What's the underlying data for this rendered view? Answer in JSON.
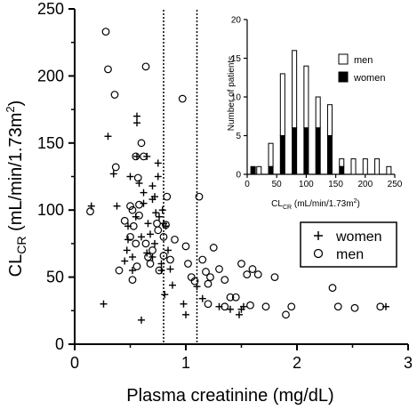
{
  "chart_data": [
    {
      "type": "scatter",
      "xlabel": "Plasma creatinine (mg/dL)",
      "ylabel": "CLCR (mL/min/1.73m2)",
      "ylabel_parts": {
        "main": "CL",
        "sub": "CR",
        "rest": " (mL/min/1.73m",
        "sup": "2",
        "close": ")"
      },
      "xlim": [
        0,
        3
      ],
      "ylim": [
        0,
        250
      ],
      "xticks": [
        "0",
        "1",
        "2",
        "3"
      ],
      "yticks": [
        "0",
        "50",
        "100",
        "150",
        "200",
        "250"
      ],
      "reference_lines_x": [
        0.8,
        1.1
      ],
      "legend": {
        "position": "right",
        "entries": [
          {
            "symbol": "+",
            "label": "women"
          },
          {
            "symbol": "o",
            "label": "men"
          }
        ]
      },
      "series": [
        {
          "name": "women",
          "marker": "+",
          "points": [
            [
              0.15,
              103
            ],
            [
              0.3,
              155
            ],
            [
              0.38,
              103
            ],
            [
              0.45,
              62
            ],
            [
              0.47,
              70
            ],
            [
              0.48,
              78
            ],
            [
              0.48,
              88
            ],
            [
              0.5,
              125
            ],
            [
              0.52,
              55
            ],
            [
              0.52,
              65
            ],
            [
              0.55,
              95
            ],
            [
              0.56,
              140
            ],
            [
              0.56,
              165
            ],
            [
              0.56,
              170
            ],
            [
              0.58,
              120
            ],
            [
              0.6,
              80
            ],
            [
              0.62,
              105
            ],
            [
              0.62,
              113
            ],
            [
              0.65,
              140
            ],
            [
              0.65,
              68
            ],
            [
              0.66,
              90
            ],
            [
              0.68,
              82
            ],
            [
              0.7,
              108
            ],
            [
              0.7,
              118
            ],
            [
              0.7,
              65
            ],
            [
              0.72,
              75
            ],
            [
              0.72,
              110
            ],
            [
              0.73,
              98
            ],
            [
              0.75,
              125
            ],
            [
              0.75,
              135
            ],
            [
              0.76,
              95
            ],
            [
              0.78,
              60
            ],
            [
              0.78,
              55
            ],
            [
              0.79,
              100
            ],
            [
              0.8,
              90
            ],
            [
              0.81,
              37
            ],
            [
              0.82,
              88
            ],
            [
              0.84,
              70
            ],
            [
              0.86,
              56
            ],
            [
              0.88,
              44
            ],
            [
              0.98,
              30
            ],
            [
              1.0,
              22
            ],
            [
              1.1,
              43
            ],
            [
              1.15,
              34
            ],
            [
              1.3,
              28
            ],
            [
              1.4,
              26
            ],
            [
              1.48,
              22
            ],
            [
              1.5,
              26
            ],
            [
              1.52,
              28
            ],
            [
              2.8,
              28
            ],
            [
              0.6,
              18
            ],
            [
              0.26,
              30
            ],
            [
              0.35,
              127
            ]
          ]
        },
        {
          "name": "men",
          "marker": "o",
          "points": [
            [
              0.28,
              233
            ],
            [
              0.3,
              205
            ],
            [
              0.36,
              186
            ],
            [
              0.37,
              132
            ],
            [
              0.64,
              207
            ],
            [
              0.97,
              183
            ],
            [
              0.6,
              150
            ],
            [
              0.55,
              140
            ],
            [
              0.57,
              124
            ],
            [
              0.5,
              103
            ],
            [
              0.52,
              100
            ],
            [
              0.58,
              96
            ],
            [
              0.62,
              140
            ],
            [
              0.64,
              75
            ],
            [
              0.68,
              60
            ],
            [
              0.7,
              70
            ],
            [
              0.74,
              90
            ],
            [
              0.75,
              85
            ],
            [
              0.8,
              80
            ],
            [
              0.82,
              89
            ],
            [
              0.83,
              110
            ],
            [
              0.9,
              78
            ],
            [
              1.0,
              73
            ],
            [
              1.02,
              60
            ],
            [
              1.05,
              50
            ],
            [
              1.08,
              47
            ],
            [
              1.12,
              110
            ],
            [
              1.15,
              63
            ],
            [
              1.18,
              54
            ],
            [
              1.2,
              45
            ],
            [
              1.22,
              50
            ],
            [
              1.25,
              72
            ],
            [
              1.3,
              56
            ],
            [
              1.35,
              48
            ],
            [
              1.4,
              35
            ],
            [
              1.45,
              35
            ],
            [
              1.5,
              60
            ],
            [
              1.55,
              52
            ],
            [
              1.58,
              29
            ],
            [
              1.6,
              56
            ],
            [
              1.65,
              52
            ],
            [
              1.72,
              28
            ],
            [
              1.8,
              50
            ],
            [
              1.9,
              22
            ],
            [
              1.95,
              28
            ],
            [
              2.32,
              42
            ],
            [
              2.37,
              28
            ],
            [
              2.52,
              27
            ],
            [
              2.75,
              28
            ],
            [
              0.52,
              48
            ],
            [
              0.56,
              58
            ],
            [
              0.66,
              65
            ],
            [
              0.76,
              55
            ],
            [
              0.5,
              80
            ],
            [
              0.55,
              75
            ],
            [
              0.45,
              92
            ],
            [
              0.53,
              88
            ],
            [
              0.8,
              66
            ],
            [
              0.86,
              63
            ],
            [
              0.58,
              104
            ],
            [
              1.2,
              30
            ],
            [
              1.35,
              28
            ],
            [
              0.14,
              99
            ],
            [
              0.4,
              55
            ]
          ]
        }
      ]
    },
    {
      "type": "bar",
      "stacked": true,
      "xlabel": "CLCR (mL/min/1.73m2)",
      "xlabel_parts": {
        "main": "CL",
        "sub": "CR",
        "rest": " (mL/min/1.73m",
        "sup": "2",
        "close": ")"
      },
      "ylabel": "Number of patients",
      "xlim": [
        0,
        250
      ],
      "ylim": [
        0,
        20
      ],
      "xticks": [
        "0",
        "50",
        "100",
        "150",
        "200",
        "250"
      ],
      "yticks": [
        "0",
        "5",
        "10",
        "15",
        "20"
      ],
      "bin_width": 10,
      "categories": [
        10,
        20,
        30,
        40,
        50,
        60,
        70,
        80,
        90,
        100,
        110,
        120,
        130,
        140,
        150,
        160,
        170,
        180,
        190,
        200,
        210,
        220,
        230,
        240
      ],
      "legend": {
        "position": "top-right",
        "entries": [
          "men",
          "women"
        ]
      },
      "series": [
        {
          "name": "women",
          "color": "#000000",
          "values": [
            1,
            0,
            0,
            1,
            0,
            5,
            0,
            6,
            0,
            6,
            0,
            6,
            0,
            5,
            0,
            1,
            0,
            0,
            0,
            0,
            0,
            0,
            0,
            0
          ]
        },
        {
          "name": "men",
          "color": "#ffffff",
          "values": [
            0,
            1,
            0,
            3,
            0,
            8,
            0,
            10,
            0,
            8,
            0,
            4,
            0,
            4,
            0,
            1,
            0,
            2,
            0,
            2,
            0,
            2,
            0,
            1
          ]
        }
      ]
    }
  ]
}
